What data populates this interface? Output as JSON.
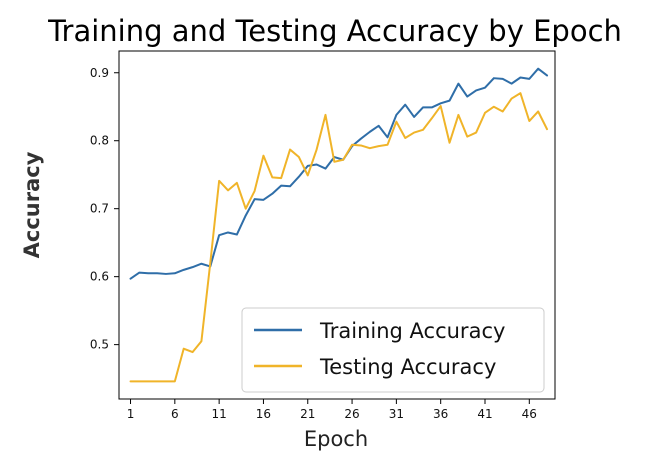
{
  "chart_data": {
    "type": "line",
    "title": "Training and Testing Accuracy by Epoch",
    "xlabel": "Epoch",
    "ylabel": "Accuracy",
    "x": [
      1,
      2,
      3,
      4,
      5,
      6,
      7,
      8,
      9,
      10,
      11,
      12,
      13,
      14,
      15,
      16,
      17,
      18,
      19,
      20,
      21,
      22,
      23,
      24,
      25,
      26,
      27,
      28,
      29,
      30,
      31,
      32,
      33,
      34,
      35,
      36,
      37,
      38,
      39,
      40,
      41,
      42,
      43,
      44,
      45,
      46,
      47,
      48
    ],
    "xticks": [
      1,
      6,
      11,
      16,
      21,
      26,
      31,
      36,
      41,
      46
    ],
    "yticks": [
      0.5,
      0.6,
      0.7,
      0.8,
      0.9
    ],
    "xlim": [
      -0.3,
      48.9
    ],
    "ylim": [
      0.42,
      0.932
    ],
    "grid": false,
    "legend_position": "lower-right",
    "series": [
      {
        "name": "Training Accuracy",
        "color": "#2f6ea8",
        "values": [
          0.597,
          0.606,
          0.605,
          0.605,
          0.604,
          0.605,
          0.61,
          0.614,
          0.619,
          0.615,
          0.661,
          0.665,
          0.662,
          0.69,
          0.714,
          0.713,
          0.722,
          0.734,
          0.733,
          0.747,
          0.763,
          0.765,
          0.759,
          0.776,
          0.772,
          0.792,
          0.803,
          0.813,
          0.822,
          0.805,
          0.838,
          0.853,
          0.835,
          0.849,
          0.849,
          0.855,
          0.859,
          0.884,
          0.865,
          0.874,
          0.878,
          0.892,
          0.891,
          0.884,
          0.893,
          0.891,
          0.906,
          0.896
        ]
      },
      {
        "name": "Testing Accuracy",
        "color": "#f0b429",
        "values": [
          0.446,
          0.446,
          0.446,
          0.446,
          0.446,
          0.446,
          0.494,
          0.489,
          0.505,
          0.62,
          0.741,
          0.727,
          0.738,
          0.7,
          0.726,
          0.778,
          0.746,
          0.745,
          0.787,
          0.776,
          0.749,
          0.787,
          0.838,
          0.769,
          0.772,
          0.794,
          0.793,
          0.789,
          0.792,
          0.794,
          0.828,
          0.804,
          0.812,
          0.816,
          0.833,
          0.851,
          0.797,
          0.838,
          0.806,
          0.812,
          0.841,
          0.85,
          0.843,
          0.862,
          0.87,
          0.829,
          0.843,
          0.817
        ]
      }
    ]
  }
}
